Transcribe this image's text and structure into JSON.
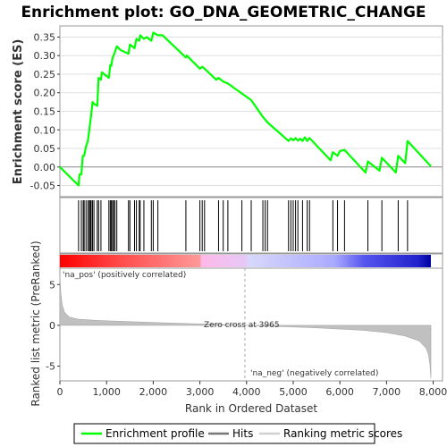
{
  "chart_data": {
    "type": "line",
    "title": "Enrichment plot: GO_DNA_GEOMETRIC_CHANGE",
    "xlabel": "Rank in Ordered Dataset",
    "xlim": [
      0,
      8200
    ],
    "x_ticks": [
      0,
      1000,
      2000,
      3000,
      4000,
      5000,
      6000,
      7000,
      8000
    ],
    "x_tick_labels": [
      "0",
      "1,000",
      "2,000",
      "3,000",
      "4,000",
      "5,000",
      "6,000",
      "7,000",
      "8,000"
    ],
    "enrichment_panel": {
      "ylabel": "Enrichment score (ES)",
      "ylim": [
        -0.08,
        0.38
      ],
      "y_ticks": [
        -0.05,
        0.0,
        0.05,
        0.1,
        0.15,
        0.2,
        0.25,
        0.3,
        0.35
      ],
      "y_tick_labels": [
        "-0.05",
        "0.00",
        "0.05",
        "0.10",
        "0.15",
        "0.20",
        "0.25",
        "0.30",
        "0.35"
      ],
      "series": [
        {
          "name": "Enrichment profile",
          "color": "#00ff00",
          "x": [
            0,
            400,
            420,
            460,
            490,
            520,
            560,
            600,
            630,
            650,
            670,
            700,
            730,
            800,
            830,
            880,
            900,
            1050,
            1080,
            1100,
            1130,
            1150,
            1180,
            1220,
            1300,
            1470,
            1500,
            1600,
            1640,
            1700,
            1720,
            1800,
            1860,
            1960,
            2000,
            2100,
            2200,
            2700,
            2720,
            3000,
            3050,
            3100,
            3350,
            3400,
            3500,
            3600,
            4100,
            4350,
            4450,
            4900,
            4950,
            5000,
            5050,
            5100,
            5150,
            5200,
            5250,
            5300,
            5350,
            5800,
            5850,
            5950,
            6000,
            6100,
            6550,
            6600,
            6850,
            6900,
            7200,
            7250,
            7400,
            7450,
            7950
          ],
          "y": [
            0.0,
            -0.05,
            -0.02,
            -0.02,
            0.03,
            0.03,
            0.055,
            0.07,
            0.1,
            0.12,
            0.14,
            0.175,
            0.17,
            0.165,
            0.24,
            0.235,
            0.255,
            0.24,
            0.275,
            0.272,
            0.295,
            0.3,
            0.31,
            0.325,
            0.315,
            0.305,
            0.33,
            0.32,
            0.345,
            0.34,
            0.355,
            0.345,
            0.35,
            0.34,
            0.362,
            0.355,
            0.355,
            0.295,
            0.3,
            0.265,
            0.27,
            0.265,
            0.235,
            0.24,
            0.23,
            0.225,
            0.18,
            0.135,
            0.12,
            0.07,
            0.077,
            0.072,
            0.078,
            0.071,
            0.076,
            0.07,
            0.08,
            0.07,
            0.078,
            0.018,
            0.04,
            0.03,
            0.043,
            0.046,
            -0.015,
            0.015,
            -0.01,
            0.025,
            -0.015,
            0.03,
            0.01,
            0.07,
            0.002
          ]
        }
      ]
    },
    "hits_panel": {
      "legend_name": "Hits",
      "hit_positions": [
        400,
        460,
        500,
        520,
        560,
        600,
        630,
        650,
        670,
        700,
        730,
        800,
        830,
        880,
        1050,
        1080,
        1100,
        1130,
        1150,
        1180,
        1220,
        1470,
        1500,
        1600,
        1640,
        1700,
        1720,
        1800,
        1960,
        2000,
        2100,
        2700,
        3000,
        3050,
        3100,
        3400,
        3500,
        3600,
        3900,
        4100,
        4350,
        4400,
        4450,
        4900,
        4950,
        5000,
        5050,
        5100,
        5200,
        5300,
        5350,
        5850,
        5950,
        6100,
        6600,
        6900,
        7250,
        7450
      ]
    },
    "ranked_list_panel": {
      "ylabel": "Ranked list metric (PreRanked)",
      "legend_name": "Ranking metric scores",
      "ylim": [
        -6.8,
        7.0
      ],
      "y_ticks": [
        -5,
        0,
        5
      ],
      "y_tick_labels": [
        "-5",
        "0",
        "5"
      ],
      "x": [
        0,
        20,
        50,
        100,
        200,
        400,
        800,
        1500,
        2500,
        3500,
        3965,
        4500,
        5500,
        6500,
        7000,
        7400,
        7700,
        7850,
        7900,
        7930,
        7950
      ],
      "y": [
        6.2,
        4.0,
        2.5,
        1.6,
        1.0,
        0.75,
        0.6,
        0.45,
        0.25,
        0.1,
        0.0,
        -0.1,
        -0.3,
        -0.6,
        -0.9,
        -1.3,
        -1.9,
        -2.8,
        -3.6,
        -4.8,
        -6.5
      ],
      "pos_label": "'na_pos' (positively correlated)",
      "neg_label": "'na_neg' (negatively correlated)",
      "zero_cross_label": "Zero cross at 3965",
      "zero_cross": 3965
    },
    "colors": {
      "profile": "#00ff00",
      "hits": "#000000",
      "metric_fill": "#c0c0c0",
      "pos_text": "#ff0000",
      "neg_text": "#0000ff"
    },
    "heatbar": {
      "x_end": 7950,
      "stops": [
        {
          "at": 0,
          "color": "#ff0000"
        },
        {
          "at": 0.16,
          "color": "#ff4a4a"
        },
        {
          "at": 0.38,
          "color": "#ff9a9a"
        },
        {
          "at": 0.38,
          "color": "#ffb8e8"
        },
        {
          "at": 0.5,
          "color": "#e6c8f6"
        },
        {
          "at": 0.51,
          "color": "#d8d8fb"
        },
        {
          "at": 0.74,
          "color": "#aaaaff"
        },
        {
          "at": 0.82,
          "color": "#5555f0"
        },
        {
          "at": 0.965,
          "color": "#2222cc"
        },
        {
          "at": 1.0,
          "color": "#0000a0"
        }
      ]
    }
  }
}
